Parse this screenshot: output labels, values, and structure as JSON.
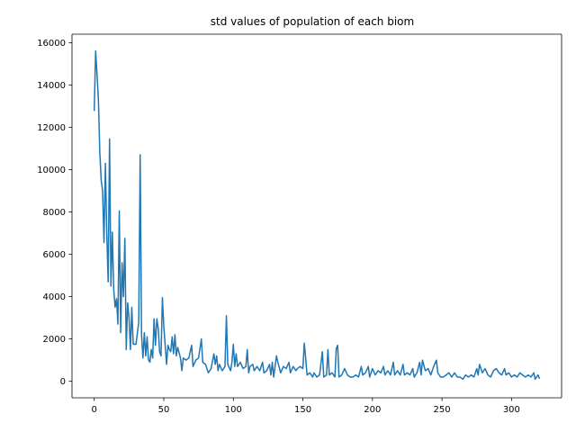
{
  "chart_data": {
    "type": "line",
    "title": "std values of population of each biom",
    "xlabel": "",
    "ylabel": "",
    "xlim": [
      -16,
      336
    ],
    "ylim": [
      -780,
      16400
    ],
    "x_ticks": [
      0,
      50,
      100,
      150,
      200,
      250,
      300
    ],
    "y_ticks": [
      0,
      2000,
      4000,
      6000,
      8000,
      10000,
      12000,
      14000,
      16000
    ],
    "grid": false,
    "legend": "none",
    "series": [
      {
        "color": "#1f77b4",
        "points": [
          [
            0,
            12800
          ],
          [
            1,
            15600
          ],
          [
            2,
            14500
          ],
          [
            3,
            13300
          ],
          [
            4,
            10800
          ],
          [
            5,
            9500
          ],
          [
            6,
            9000
          ],
          [
            7,
            6550
          ],
          [
            8,
            10300
          ],
          [
            9,
            7000
          ],
          [
            10,
            4700
          ],
          [
            11,
            11450
          ],
          [
            12,
            4500
          ],
          [
            13,
            7050
          ],
          [
            14,
            4350
          ],
          [
            15,
            3500
          ],
          [
            16,
            3900
          ],
          [
            17,
            2700
          ],
          [
            18,
            8050
          ],
          [
            19,
            2300
          ],
          [
            20,
            5600
          ],
          [
            21,
            4000
          ],
          [
            22,
            6750
          ],
          [
            23,
            1500
          ],
          [
            24,
            3700
          ],
          [
            25,
            3000
          ],
          [
            26,
            1500
          ],
          [
            27,
            3500
          ],
          [
            28,
            1750
          ],
          [
            30,
            1750
          ],
          [
            32,
            2800
          ],
          [
            33,
            10700
          ],
          [
            34,
            2200
          ],
          [
            35,
            1100
          ],
          [
            36,
            2300
          ],
          [
            37,
            1200
          ],
          [
            38,
            2100
          ],
          [
            39,
            1000
          ],
          [
            40,
            900
          ],
          [
            41,
            1500
          ],
          [
            42,
            1100
          ],
          [
            43,
            2950
          ],
          [
            44,
            1700
          ],
          [
            45,
            2950
          ],
          [
            46,
            2500
          ],
          [
            47,
            1400
          ],
          [
            48,
            1200
          ],
          [
            49,
            3950
          ],
          [
            50,
            2600
          ],
          [
            51,
            1700
          ],
          [
            52,
            800
          ],
          [
            53,
            1700
          ],
          [
            54,
            1500
          ],
          [
            55,
            1400
          ],
          [
            56,
            2100
          ],
          [
            57,
            1300
          ],
          [
            58,
            2200
          ],
          [
            59,
            1200
          ],
          [
            60,
            1600
          ],
          [
            62,
            1100
          ],
          [
            63,
            500
          ],
          [
            64,
            1100
          ],
          [
            66,
            1000
          ],
          [
            68,
            1100
          ],
          [
            70,
            1700
          ],
          [
            71,
            700
          ],
          [
            73,
            1000
          ],
          [
            75,
            1100
          ],
          [
            77,
            2000
          ],
          [
            78,
            900
          ],
          [
            80,
            800
          ],
          [
            81,
            600
          ],
          [
            82,
            400
          ],
          [
            84,
            600
          ],
          [
            86,
            1300
          ],
          [
            87,
            800
          ],
          [
            88,
            1200
          ],
          [
            89,
            500
          ],
          [
            90,
            800
          ],
          [
            92,
            500
          ],
          [
            94,
            700
          ],
          [
            95,
            3100
          ],
          [
            96,
            800
          ],
          [
            98,
            500
          ],
          [
            99,
            900
          ],
          [
            100,
            1750
          ],
          [
            101,
            700
          ],
          [
            102,
            1300
          ],
          [
            103,
            700
          ],
          [
            105,
            900
          ],
          [
            107,
            600
          ],
          [
            109,
            700
          ],
          [
            110,
            1500
          ],
          [
            111,
            400
          ],
          [
            112,
            700
          ],
          [
            114,
            800
          ],
          [
            115,
            500
          ],
          [
            117,
            700
          ],
          [
            119,
            500
          ],
          [
            121,
            900
          ],
          [
            122,
            400
          ],
          [
            124,
            500
          ],
          [
            126,
            800
          ],
          [
            127,
            300
          ],
          [
            128,
            900
          ],
          [
            129,
            200
          ],
          [
            131,
            1200
          ],
          [
            132,
            900
          ],
          [
            134,
            400
          ],
          [
            136,
            700
          ],
          [
            138,
            600
          ],
          [
            140,
            900
          ],
          [
            141,
            400
          ],
          [
            143,
            700
          ],
          [
            145,
            500
          ],
          [
            146,
            600
          ],
          [
            148,
            700
          ],
          [
            150,
            600
          ],
          [
            151,
            1800
          ],
          [
            152,
            1100
          ],
          [
            153,
            300
          ],
          [
            155,
            400
          ],
          [
            157,
            200
          ],
          [
            158,
            400
          ],
          [
            160,
            200
          ],
          [
            162,
            300
          ],
          [
            164,
            1400
          ],
          [
            165,
            200
          ],
          [
            167,
            300
          ],
          [
            168,
            1500
          ],
          [
            169,
            300
          ],
          [
            171,
            400
          ],
          [
            173,
            200
          ],
          [
            174,
            1550
          ],
          [
            175,
            1700
          ],
          [
            176,
            200
          ],
          [
            178,
            300
          ],
          [
            180,
            600
          ],
          [
            182,
            300
          ],
          [
            184,
            200
          ],
          [
            186,
            200
          ],
          [
            188,
            300
          ],
          [
            190,
            200
          ],
          [
            192,
            700
          ],
          [
            193,
            300
          ],
          [
            195,
            400
          ],
          [
            197,
            700
          ],
          [
            198,
            200
          ],
          [
            200,
            600
          ],
          [
            202,
            300
          ],
          [
            204,
            500
          ],
          [
            206,
            400
          ],
          [
            208,
            700
          ],
          [
            209,
            300
          ],
          [
            211,
            500
          ],
          [
            213,
            300
          ],
          [
            215,
            900
          ],
          [
            216,
            300
          ],
          [
            218,
            500
          ],
          [
            220,
            300
          ],
          [
            222,
            800
          ],
          [
            223,
            300
          ],
          [
            225,
            400
          ],
          [
            227,
            300
          ],
          [
            229,
            600
          ],
          [
            230,
            200
          ],
          [
            232,
            400
          ],
          [
            234,
            900
          ],
          [
            235,
            300
          ],
          [
            236,
            1000
          ],
          [
            238,
            500
          ],
          [
            240,
            600
          ],
          [
            242,
            300
          ],
          [
            244,
            700
          ],
          [
            246,
            1000
          ],
          [
            247,
            400
          ],
          [
            249,
            200
          ],
          [
            251,
            200
          ],
          [
            253,
            300
          ],
          [
            255,
            400
          ],
          [
            257,
            200
          ],
          [
            259,
            400
          ],
          [
            261,
            200
          ],
          [
            263,
            200
          ],
          [
            265,
            100
          ],
          [
            267,
            300
          ],
          [
            269,
            200
          ],
          [
            271,
            300
          ],
          [
            273,
            200
          ],
          [
            275,
            600
          ],
          [
            276,
            300
          ],
          [
            277,
            800
          ],
          [
            279,
            400
          ],
          [
            281,
            600
          ],
          [
            283,
            300
          ],
          [
            285,
            200
          ],
          [
            287,
            500
          ],
          [
            289,
            600
          ],
          [
            291,
            400
          ],
          [
            293,
            300
          ],
          [
            295,
            600
          ],
          [
            296,
            300
          ],
          [
            298,
            400
          ],
          [
            300,
            200
          ],
          [
            302,
            300
          ],
          [
            304,
            200
          ],
          [
            306,
            400
          ],
          [
            308,
            300
          ],
          [
            310,
            200
          ],
          [
            312,
            300
          ],
          [
            314,
            200
          ],
          [
            316,
            400
          ],
          [
            317,
            100
          ],
          [
            319,
            300
          ],
          [
            320,
            150
          ]
        ]
      }
    ]
  }
}
